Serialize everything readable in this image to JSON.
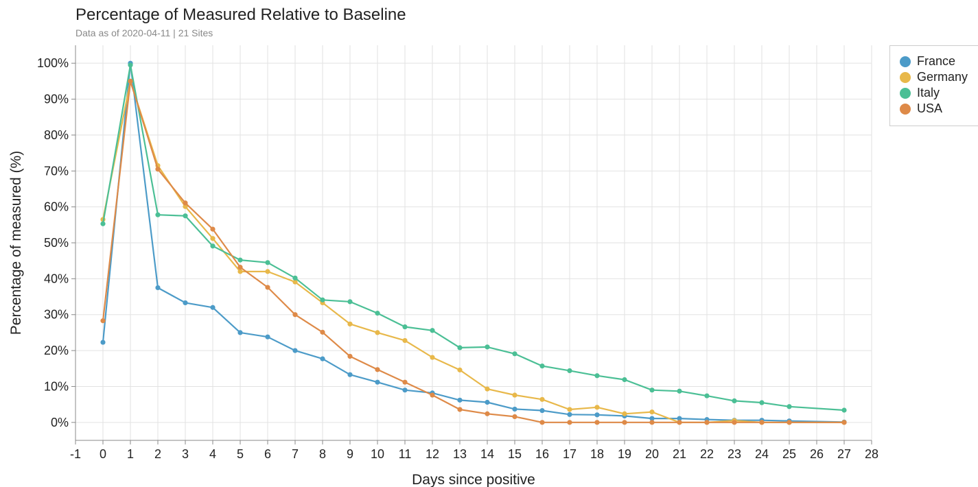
{
  "title": "Percentage of Measured Relative to Baseline",
  "subtitle": "Data as of 2020-04-11 | 21 Sites",
  "colors": {
    "France": "#4c9bc8",
    "Germany": "#e8b84a",
    "Italy": "#4bbf95",
    "USA": "#de8a48"
  },
  "chart_data": {
    "type": "line",
    "title": "Percentage of Measured Relative to Baseline",
    "subtitle": "Data as of 2020-04-11 | 21 Sites",
    "xlabel": "Days since positive",
    "ylabel": "Percentage of measured (%)",
    "xlim": [
      -1,
      28
    ],
    "ylim": [
      -5,
      105
    ],
    "x_ticks": [
      -1,
      0,
      1,
      2,
      3,
      4,
      5,
      6,
      7,
      8,
      9,
      10,
      11,
      12,
      13,
      14,
      15,
      16,
      17,
      18,
      19,
      20,
      21,
      22,
      23,
      24,
      25,
      26,
      27,
      28
    ],
    "y_ticks": [
      0,
      10,
      20,
      30,
      40,
      50,
      60,
      70,
      80,
      90,
      100
    ],
    "y_tick_labels": [
      "0%",
      "10%",
      "20%",
      "30%",
      "40%",
      "50%",
      "60%",
      "70%",
      "80%",
      "90%",
      "100%"
    ],
    "grid": true,
    "legend": "right",
    "x": [
      0,
      1,
      2,
      3,
      4,
      5,
      6,
      7,
      8,
      9,
      10,
      11,
      12,
      13,
      14,
      15,
      16,
      17,
      18,
      19,
      20,
      21,
      22,
      23,
      24,
      25,
      26,
      27
    ],
    "series": [
      {
        "name": "France",
        "values": [
          22.3,
          100,
          37.5,
          33.3,
          32.0,
          25.0,
          23.8,
          20.0,
          17.7,
          13.3,
          11.2,
          9.0,
          8.2,
          6.2,
          5.6,
          3.7,
          3.3,
          2.2,
          2.1,
          1.8,
          1.1,
          1.1,
          0.8,
          0.6,
          0.6,
          0.4,
          null,
          0.1
        ]
      },
      {
        "name": "Germany",
        "values": [
          56.5,
          95.0,
          71.5,
          60.1,
          51.2,
          42.0,
          42.0,
          39.1,
          33.3,
          27.4,
          25.0,
          22.8,
          18.1,
          14.6,
          9.3,
          7.6,
          6.4,
          3.6,
          4.2,
          2.4,
          2.9,
          0,
          0,
          0.5,
          0,
          0,
          null,
          0
        ]
      },
      {
        "name": "Italy",
        "values": [
          55.3,
          99.5,
          57.8,
          57.5,
          49.1,
          45.2,
          44.5,
          40.2,
          34.1,
          33.6,
          30.4,
          26.6,
          25.6,
          20.8,
          21.0,
          19.1,
          15.7,
          14.4,
          13.0,
          11.9,
          9.0,
          8.7,
          7.4,
          6.0,
          5.5,
          4.4,
          null,
          3.4
        ]
      },
      {
        "name": "USA",
        "values": [
          28.3,
          95.0,
          70.5,
          61.1,
          53.8,
          43.2,
          37.6,
          30.0,
          25.1,
          18.4,
          14.7,
          11.2,
          7.6,
          3.6,
          2.4,
          1.6,
          0,
          0,
          0,
          0,
          0,
          0,
          0,
          0,
          0,
          0,
          null,
          0
        ]
      }
    ]
  }
}
